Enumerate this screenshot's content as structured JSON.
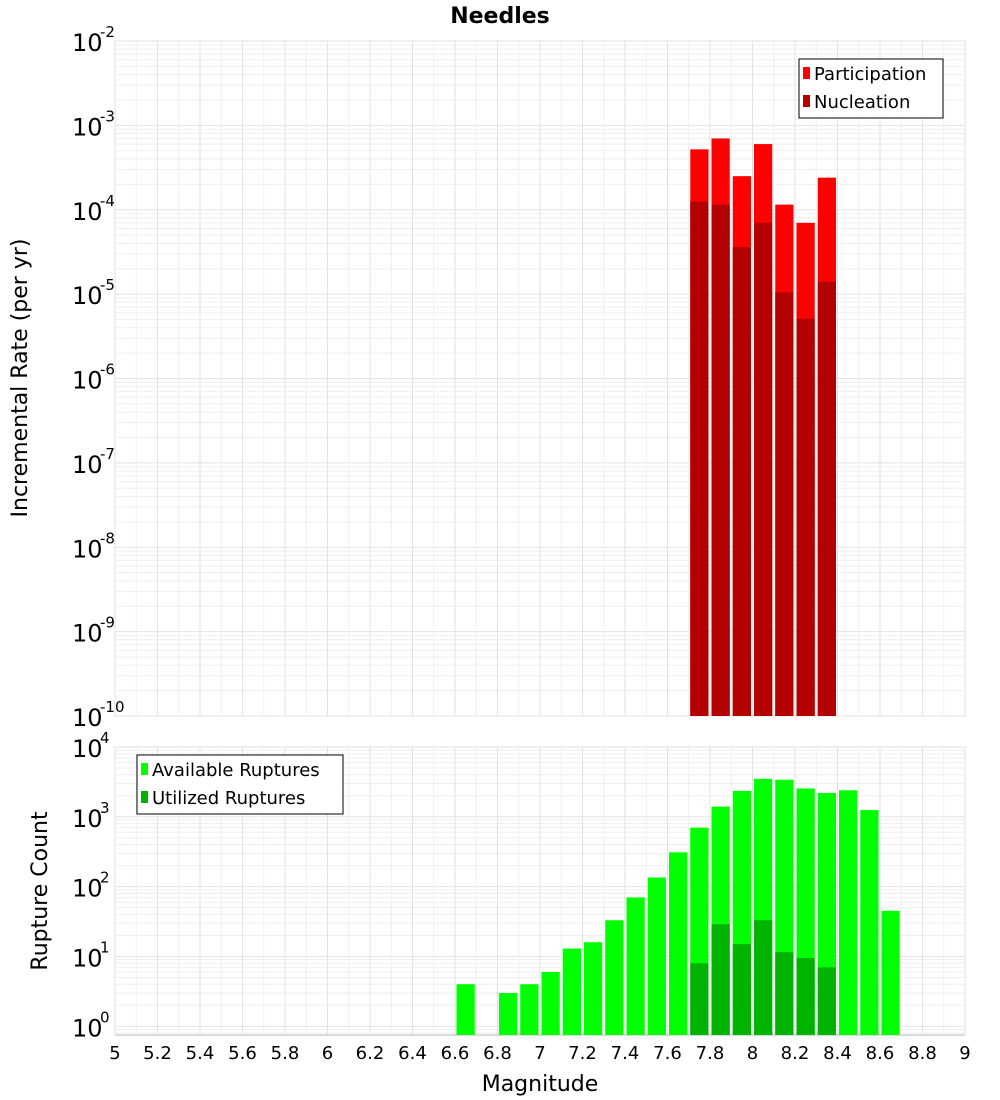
{
  "chart_data": [
    {
      "type": "bar",
      "title": "Needles",
      "xlabel": "",
      "ylabel": "Incremental Rate (per yr)",
      "yscale": "log",
      "ylim": [
        1e-10,
        0.01
      ],
      "xlim": [
        5,
        9
      ],
      "bin_width": 0.1,
      "y_ticks": [
        {
          "base": "10",
          "exp": "-10"
        },
        {
          "base": "10",
          "exp": "-9"
        },
        {
          "base": "10",
          "exp": "-8"
        },
        {
          "base": "10",
          "exp": "-7"
        },
        {
          "base": "10",
          "exp": "-6"
        },
        {
          "base": "10",
          "exp": "-5"
        },
        {
          "base": "10",
          "exp": "-4"
        },
        {
          "base": "10",
          "exp": "-3"
        },
        {
          "base": "10",
          "exp": "-2"
        }
      ],
      "legend": {
        "position": "top-right",
        "entries": [
          "Participation",
          "Nucleation"
        ]
      },
      "grid": true,
      "series": [
        {
          "name": "Participation",
          "color": "#ff0000",
          "x": [
            7.75,
            7.85,
            7.95,
            8.05,
            8.15,
            8.25,
            8.35
          ],
          "values": [
            0.00052,
            0.0007,
            0.00025,
            0.0006,
            0.000115,
            7e-05,
            0.00024
          ]
        },
        {
          "name": "Nucleation",
          "color": "#b30000",
          "x": [
            7.75,
            7.85,
            7.95,
            8.05,
            8.15,
            8.25,
            8.35
          ],
          "values": [
            0.000125,
            0.000115,
            3.6e-05,
            7e-05,
            1.05e-05,
            5.1e-06,
            1.4e-05
          ]
        }
      ]
    },
    {
      "type": "bar",
      "title": "",
      "xlabel": "Magnitude",
      "ylabel": "Rupture Count",
      "yscale": "log",
      "ylim": [
        0.75,
        10000.0
      ],
      "xlim": [
        5,
        9
      ],
      "bin_width": 0.1,
      "x_ticks": [
        "5",
        "5.2",
        "5.4",
        "5.6",
        "5.8",
        "6",
        "6.2",
        "6.4",
        "6.6",
        "6.8",
        "7",
        "7.2",
        "7.4",
        "7.6",
        "7.8",
        "8",
        "8.2",
        "8.4",
        "8.6",
        "8.8",
        "9"
      ],
      "y_ticks": [
        {
          "base": "10",
          "exp": "0"
        },
        {
          "base": "10",
          "exp": "1"
        },
        {
          "base": "10",
          "exp": "2"
        },
        {
          "base": "10",
          "exp": "3"
        },
        {
          "base": "10",
          "exp": "4"
        }
      ],
      "legend": {
        "position": "top-left",
        "entries": [
          "Available Ruptures",
          "Utilized Ruptures"
        ]
      },
      "grid": true,
      "series": [
        {
          "name": "Available Ruptures",
          "color": "#00ff00",
          "x": [
            6.65,
            6.85,
            6.95,
            7.05,
            7.15,
            7.25,
            7.35,
            7.45,
            7.55,
            7.65,
            7.75,
            7.85,
            7.95,
            8.05,
            8.15,
            8.25,
            8.35,
            8.45,
            8.55,
            8.65
          ],
          "values": [
            4,
            3,
            4,
            6,
            13,
            16,
            33,
            70,
            135,
            310,
            700,
            1400,
            2350,
            3500,
            3400,
            2550,
            2200,
            2400,
            1250,
            45
          ]
        },
        {
          "name": "Utilized Ruptures",
          "color": "#00b300",
          "x": [
            7.75,
            7.85,
            7.95,
            8.05,
            8.15,
            8.25,
            8.35
          ],
          "values": [
            8,
            29,
            15,
            33,
            11.5,
            9.5,
            7
          ]
        }
      ]
    }
  ]
}
